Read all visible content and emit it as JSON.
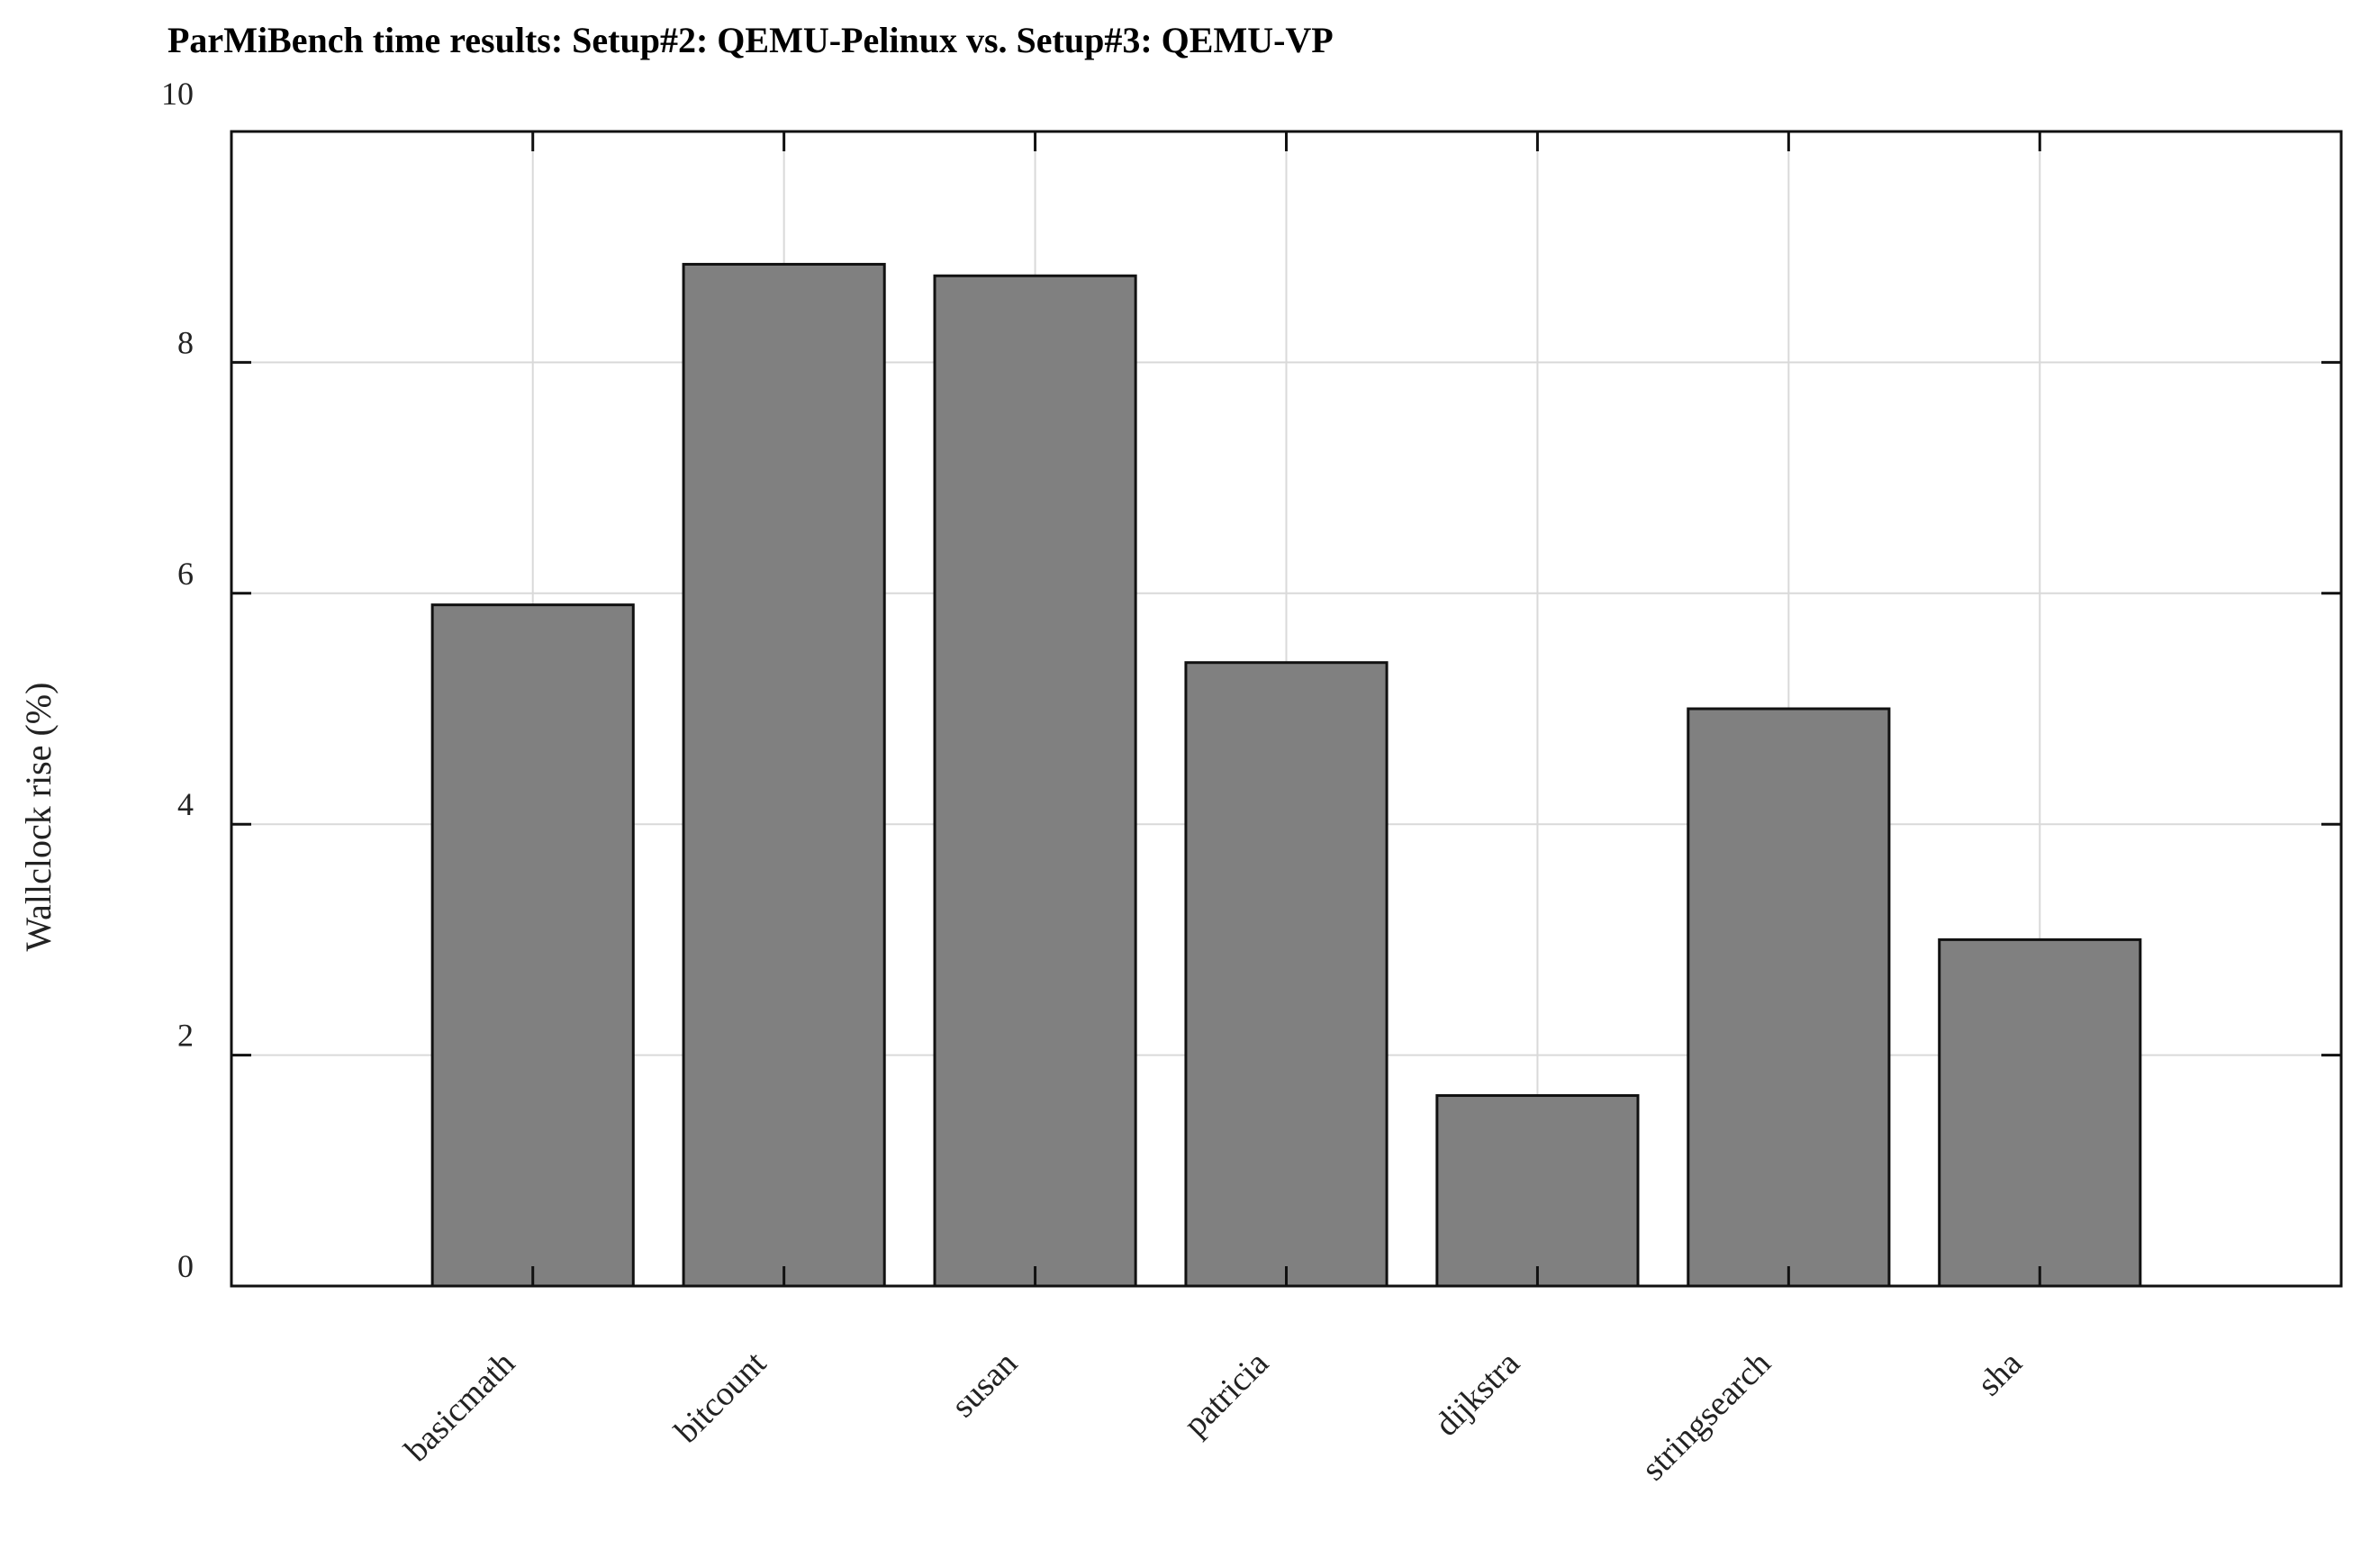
{
  "chart_data": {
    "type": "bar",
    "title": "ParMiBench time results: Setup#2: QEMU-Pelinux vs. Setup#3: QEMU-VP",
    "xlabel": "",
    "ylabel": "Wallclock rise (%)",
    "categories": [
      "basicmath",
      "bitcount",
      "susan",
      "patricia",
      "dijkstra",
      "stringsearch",
      "sha"
    ],
    "values": [
      5.9,
      8.85,
      8.75,
      5.4,
      1.65,
      5.0,
      3.0
    ],
    "ylim": [
      0,
      10
    ],
    "yticks": [
      0,
      2,
      4,
      6,
      8,
      10
    ],
    "ytick_labels": [
      "0",
      "2",
      "4",
      "6",
      "8",
      "10"
    ],
    "grid": true,
    "colors": {
      "bar_fill": "#808080",
      "bar_edge": "#111111",
      "grid": "#d9d9d9",
      "axis": "#111111"
    }
  }
}
